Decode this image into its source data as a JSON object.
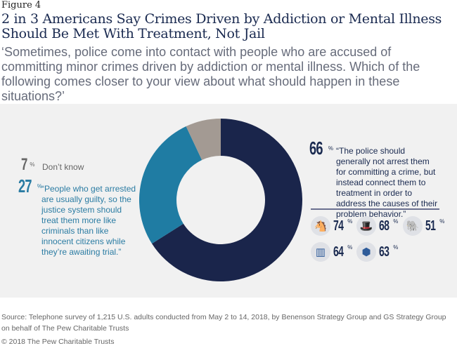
{
  "figure_label": "Figure 4",
  "title": "2 in 3 Americans Say Crimes Driven by Addiction or Mental Illness Should Be Met With Treatment, Not Jail",
  "subtitle": "‘Sometimes, police come into contact with people who are accused of committing minor crimes driven by addiction or mental illness. Which of the following comes closer to your view about what should happen in these situations?’",
  "chart_data": {
    "type": "pie",
    "donut": true,
    "slices": [
      {
        "label": "“The police should generally not arrest them for committing a crime, but instead connect them to treatment in order to address the causes of their problem behavior.”",
        "value": 66,
        "display": "66",
        "color": "#1a254b"
      },
      {
        "label": "“People who get arrested are usually guilty, so the justice system should treat them more like criminals than like innocent citizens while they’re awaiting trial.”",
        "value": 27,
        "display": "27",
        "color": "#1f7ca3"
      },
      {
        "label": "Don’t know",
        "value": 7,
        "display": "7",
        "color": "#a39a93"
      }
    ],
    "percent_sign": "%",
    "subgroups": [
      {
        "icon": "donkey-icon",
        "value": 74,
        "display": "74"
      },
      {
        "icon": "uncle-sam-hat-icon",
        "value": 68,
        "display": "68"
      },
      {
        "icon": "elephant-icon",
        "value": 51,
        "display": "51"
      },
      {
        "icon": "jail-cell-icon",
        "value": 64,
        "display": "64"
      },
      {
        "icon": "police-badge-icon",
        "value": 63,
        "display": "63"
      }
    ]
  },
  "source": "Source: Telephone survey of 1,215 U.S. adults conducted from May 2 to 14, 2018, by Benenson Strategy Group and GS Strategy Group on behalf of The Pew Charitable Trusts",
  "copyright": "© 2018 The Pew Charitable Trusts"
}
